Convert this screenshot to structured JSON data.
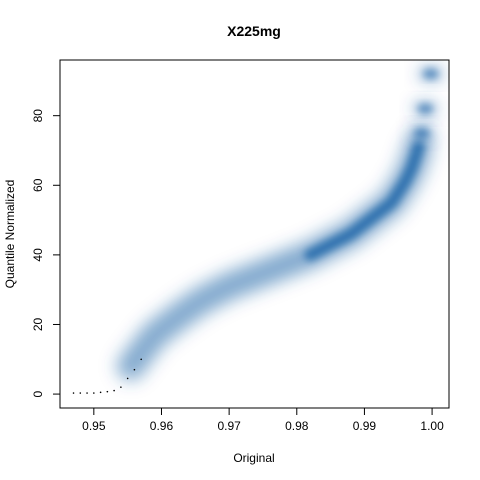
{
  "chart_data": {
    "type": "scatter",
    "style": "smoothed-density",
    "title": "X225mg",
    "xlabel": "Original",
    "ylabel": "Quantile Normalized",
    "xlim": [
      0.945,
      1.0025
    ],
    "ylim": [
      -4,
      96
    ],
    "x_ticks": [
      0.95,
      0.96,
      0.97,
      0.98,
      0.99,
      1.0
    ],
    "x_tick_labels": [
      "0.95",
      "0.96",
      "0.97",
      "0.98",
      "0.99",
      "1.00"
    ],
    "y_ticks": [
      0,
      20,
      40,
      60,
      80
    ],
    "y_tick_labels": [
      "0",
      "20",
      "40",
      "60",
      "80"
    ],
    "grid": false,
    "density_color": "#08519c",
    "curve": {
      "x": [
        0.9555,
        0.957,
        0.959,
        0.961,
        0.963,
        0.966,
        0.97,
        0.974,
        0.978,
        0.982,
        0.985,
        0.988,
        0.99,
        0.992,
        0.994,
        0.995,
        0.996,
        0.997,
        0.998
      ],
      "y": [
        8,
        12,
        17,
        20,
        23,
        27,
        31,
        34,
        37,
        40,
        43,
        46,
        49,
        52,
        55,
        58,
        61,
        65,
        71
      ]
    },
    "clusters": [
      {
        "x": 0.9985,
        "y": 75
      },
      {
        "x": 0.999,
        "y": 82
      },
      {
        "x": 0.9998,
        "y": 92
      }
    ],
    "outliers": {
      "x": [
        0.947,
        0.948,
        0.949,
        0.95,
        0.951,
        0.952,
        0.953,
        0.954,
        0.955,
        0.956,
        0.957
      ],
      "y": [
        0.3,
        0.3,
        0.3,
        0.3,
        0.5,
        0.7,
        1.0,
        2.0,
        4.5,
        7.0,
        10.0
      ]
    }
  }
}
